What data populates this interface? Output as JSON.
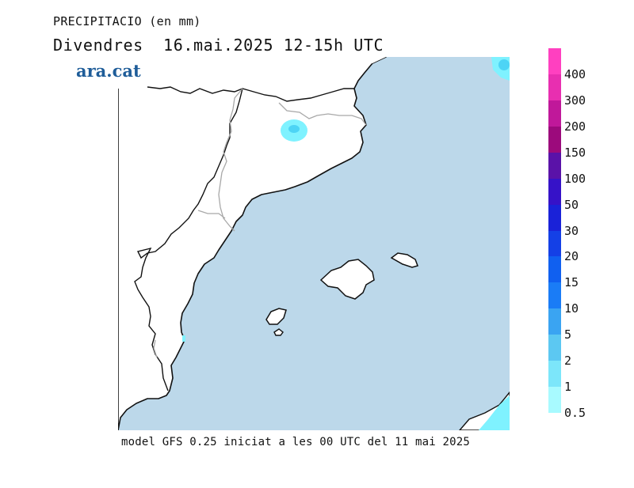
{
  "header": {
    "title": "PRECIPITACIO (en mm)",
    "subtitle": "Divendres  16.mai.2025 12-15h UTC"
  },
  "logo": {
    "text": "ara.cat",
    "color": "#1f5d99"
  },
  "map": {
    "sea_color": "#bcd8ea",
    "land_color": "#ffffff",
    "coast_color": "#111111",
    "border_color": "#a8a8a8",
    "precip_light": "#7ff2ff",
    "precip_mid": "#4dd4f5"
  },
  "legend": {
    "levels": [
      {
        "label": "400",
        "color": "#ff40c0"
      },
      {
        "label": "300",
        "color": "#e82fb0"
      },
      {
        "label": "200",
        "color": "#c0189a"
      },
      {
        "label": "150",
        "color": "#9c0a7c"
      },
      {
        "label": "100",
        "color": "#5a12a8"
      },
      {
        "label": "50",
        "color": "#3612c8"
      },
      {
        "label": "30",
        "color": "#1a22d8"
      },
      {
        "label": "20",
        "color": "#1440e6"
      },
      {
        "label": "15",
        "color": "#1060f0"
      },
      {
        "label": "10",
        "color": "#1a7cf6"
      },
      {
        "label": "5",
        "color": "#3aa4f2"
      },
      {
        "label": "2",
        "color": "#5cc8f2"
      },
      {
        "label": "1",
        "color": "#7ce6fa"
      },
      {
        "label": "0.5",
        "color": "#a8faff"
      }
    ]
  },
  "footer": {
    "text": "model GFS 0.25 iniciat a les 00 UTC del 11 mai 2025"
  }
}
